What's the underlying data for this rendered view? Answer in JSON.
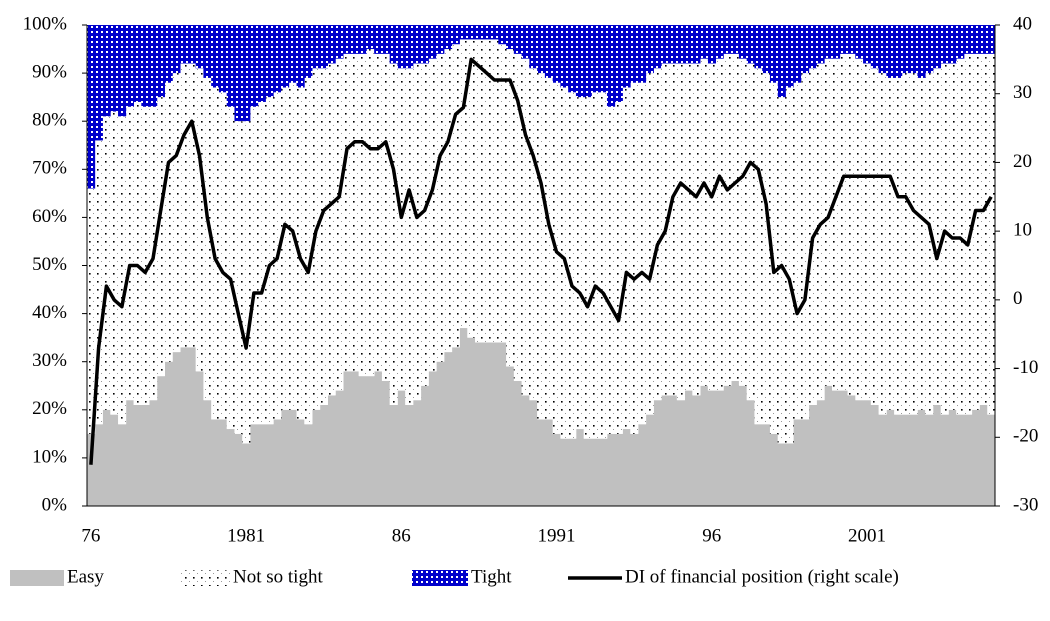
{
  "chart_data": {
    "type": "area",
    "stacked": true,
    "x": [
      "76",
      null,
      null,
      null,
      null,
      null,
      null,
      null,
      null,
      null,
      null,
      null,
      null,
      null,
      null,
      null,
      null,
      null,
      null,
      null,
      "1981",
      null,
      null,
      null,
      null,
      null,
      null,
      null,
      null,
      null,
      null,
      null,
      null,
      null,
      null,
      null,
      null,
      null,
      null,
      null,
      "86",
      null,
      null,
      null,
      null,
      null,
      null,
      null,
      null,
      null,
      null,
      null,
      null,
      null,
      null,
      null,
      null,
      null,
      null,
      null,
      "1991",
      null,
      null,
      null,
      null,
      null,
      null,
      null,
      null,
      null,
      null,
      null,
      null,
      null,
      null,
      null,
      null,
      null,
      null,
      null,
      "96",
      null,
      null,
      null,
      null,
      null,
      null,
      null,
      null,
      null,
      null,
      null,
      null,
      null,
      null,
      null,
      null,
      null,
      null,
      null,
      "2001",
      null,
      null,
      null,
      null,
      null,
      null,
      null,
      null,
      null,
      null,
      null,
      null,
      null,
      null,
      null,
      null
    ],
    "series": [
      {
        "name": "Easy",
        "color": "#c0c0c0",
        "pattern": "solid",
        "values": [
          15,
          17,
          20,
          19,
          17,
          22,
          21,
          21,
          22,
          27,
          30,
          32,
          33,
          33,
          28,
          22,
          18,
          18,
          16,
          15,
          13,
          17,
          17,
          17,
          18,
          20,
          20,
          18,
          17,
          20,
          21,
          23,
          24,
          28,
          28,
          27,
          27,
          28,
          26,
          21,
          24,
          21,
          22,
          25,
          28,
          30,
          32,
          33,
          37,
          35,
          34,
          34,
          34,
          34,
          29,
          26,
          23,
          22,
          18,
          18,
          15,
          14,
          14,
          16,
          14,
          14,
          14,
          15,
          15,
          16,
          15,
          17,
          19,
          22,
          23,
          23,
          22,
          24,
          23,
          25,
          24,
          24,
          25,
          26,
          25,
          22,
          17,
          17,
          15,
          13,
          13,
          18,
          18,
          21,
          22,
          25,
          24,
          24,
          23,
          22,
          22,
          21,
          19,
          20,
          19,
          19,
          19,
          20,
          19,
          21,
          19,
          20,
          19,
          19,
          20,
          21,
          19
        ]
      },
      {
        "name": "Not so tight",
        "color": "#ffffff",
        "pattern": "dots",
        "values": [
          51,
          59,
          61,
          63,
          64,
          61,
          63,
          62,
          61,
          58,
          58,
          58,
          59,
          59,
          63,
          67,
          69,
          68,
          67,
          65,
          67,
          66,
          67,
          68,
          68,
          67,
          68,
          69,
          72,
          71,
          70,
          69,
          69,
          66,
          66,
          67,
          68,
          66,
          68,
          71,
          67,
          70,
          70,
          67,
          65,
          64,
          63,
          63,
          60,
          62,
          63,
          63,
          63,
          62,
          66,
          68,
          70,
          69,
          72,
          71,
          73,
          73,
          72,
          69,
          71,
          72,
          72,
          68,
          69,
          71,
          73,
          71,
          71,
          69,
          69,
          69,
          70,
          68,
          69,
          68,
          68,
          69,
          69,
          68,
          68,
          70,
          74,
          73,
          73,
          72,
          74,
          70,
          72,
          70,
          70,
          68,
          69,
          70,
          71,
          71,
          70,
          70,
          71,
          69,
          70,
          71,
          71,
          69,
          71,
          70,
          73,
          72,
          74,
          75,
          74,
          73,
          75
        ]
      },
      {
        "name": "Tight",
        "color": "#0000cc",
        "pattern": "grid",
        "values": [
          34,
          24,
          19,
          18,
          19,
          17,
          16,
          17,
          17,
          15,
          12,
          10,
          8,
          8,
          9,
          11,
          13,
          14,
          17,
          20,
          20,
          17,
          16,
          15,
          14,
          13,
          12,
          13,
          11,
          9,
          9,
          8,
          7,
          6,
          6,
          6,
          5,
          6,
          6,
          8,
          9,
          9,
          8,
          8,
          7,
          6,
          5,
          4,
          3,
          3,
          3,
          3,
          3,
          4,
          5,
          6,
          7,
          9,
          10,
          11,
          12,
          13,
          14,
          15,
          15,
          14,
          14,
          17,
          16,
          13,
          12,
          12,
          10,
          9,
          8,
          8,
          8,
          8,
          8,
          7,
          8,
          7,
          6,
          6,
          7,
          8,
          9,
          10,
          12,
          15,
          13,
          12,
          10,
          9,
          8,
          7,
          7,
          6,
          6,
          7,
          8,
          9,
          10,
          11,
          11,
          10,
          10,
          11,
          10,
          9,
          8,
          8,
          7,
          6,
          6,
          6,
          6
        ]
      },
      {
        "name": "DI of financial position (right scale)",
        "color": "#000000",
        "type": "line",
        "axis": "y2",
        "values": [
          -24,
          -7,
          2,
          0,
          -1,
          5,
          5,
          4,
          6,
          13,
          20,
          21,
          24,
          26,
          21,
          12,
          6,
          4,
          3,
          -2,
          -7,
          1,
          1,
          5,
          6,
          11,
          10,
          6,
          4,
          10,
          13,
          14,
          15,
          22,
          23,
          23,
          22,
          22,
          23,
          19,
          12,
          16,
          12,
          13,
          16,
          21,
          23,
          27,
          28,
          35,
          34,
          33,
          32,
          32,
          32,
          29,
          24,
          21,
          17,
          11,
          7,
          6,
          2,
          1,
          -1,
          2,
          1,
          -1,
          -3,
          4,
          3,
          4,
          3,
          8,
          10,
          15,
          17,
          16,
          15,
          17,
          15,
          18,
          16,
          17,
          18,
          20,
          19,
          14,
          4,
          5,
          3,
          -2,
          0,
          9,
          11,
          12,
          15,
          18,
          18,
          18,
          18,
          18,
          18,
          18,
          15,
          15,
          13,
          12,
          11,
          6,
          10,
          9,
          9,
          8,
          13,
          13,
          15
        ]
      }
    ],
    "ylim": [
      0,
      100
    ],
    "yticks": [
      {
        "value": 0,
        "label": "0%"
      },
      {
        "value": 10,
        "label": "10%"
      },
      {
        "value": 20,
        "label": "20%"
      },
      {
        "value": 30,
        "label": "30%"
      },
      {
        "value": 40,
        "label": "40%"
      },
      {
        "value": 50,
        "label": "50%"
      },
      {
        "value": 60,
        "label": "60%"
      },
      {
        "value": 70,
        "label": "70%"
      },
      {
        "value": 80,
        "label": "80%"
      },
      {
        "value": 90,
        "label": "90%"
      },
      {
        "value": 100,
        "label": "100%"
      }
    ],
    "y2lim": [
      -30,
      40
    ],
    "y2ticks": [
      -30,
      -20,
      -10,
      0,
      10,
      20,
      30,
      40
    ],
    "legend": "bottom"
  }
}
